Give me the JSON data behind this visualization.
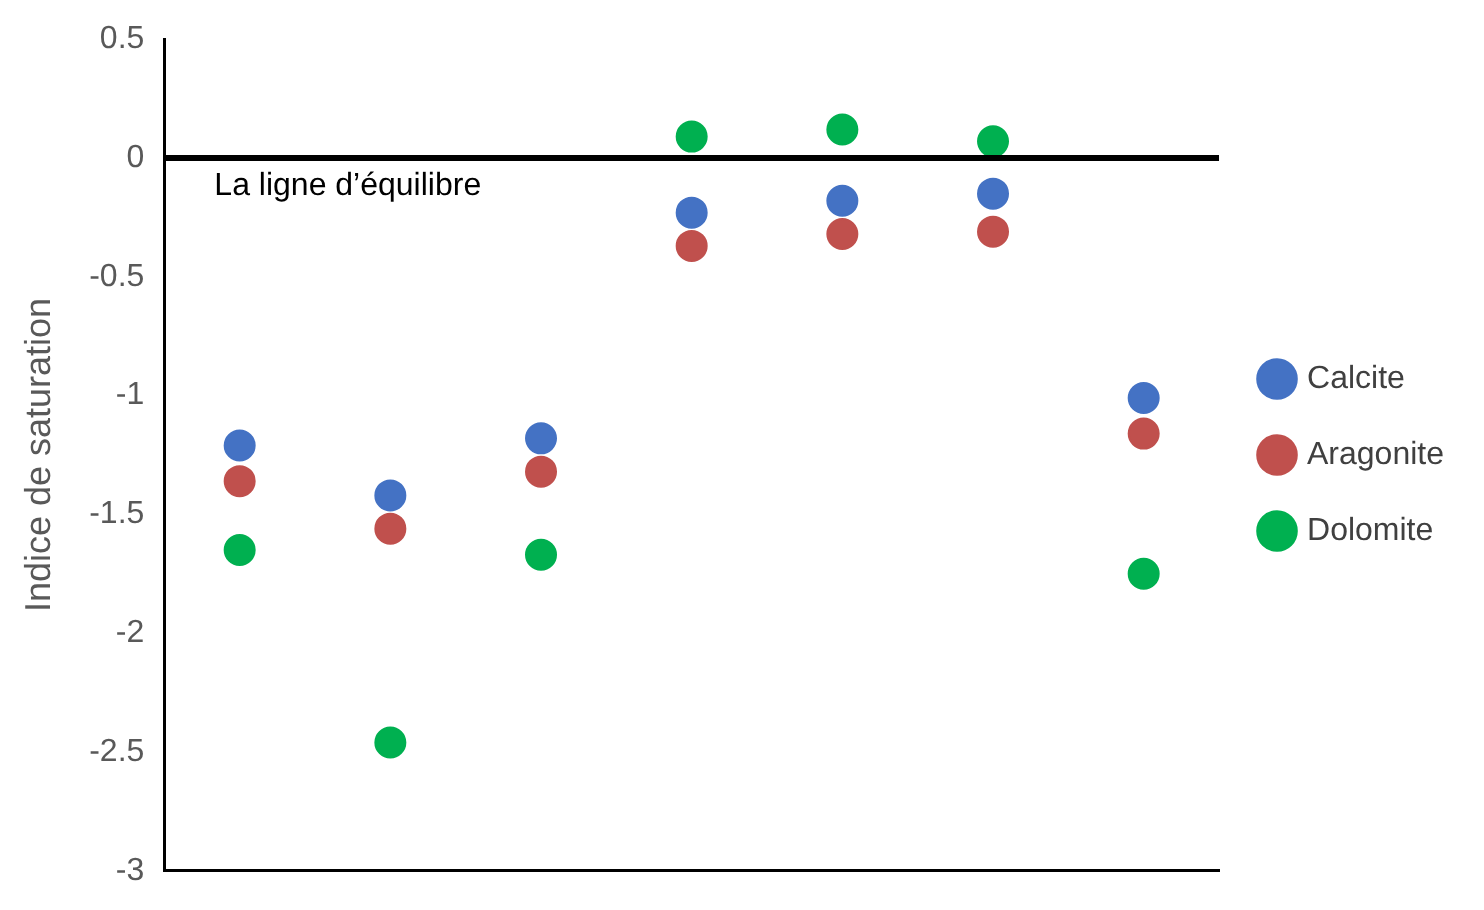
{
  "chart_data": {
    "type": "scatter",
    "ylabel": "Indice de saturation",
    "categories": [
      null,
      null,
      null,
      null,
      null,
      null,
      null
    ],
    "series": [
      {
        "name": "Calcite",
        "color": "#4472c4",
        "values": [
          -1.21,
          -1.42,
          -1.18,
          -0.23,
          -0.18,
          -0.15,
          -1.01
        ]
      },
      {
        "name": "Aragonite",
        "color": "#c0504d",
        "values": [
          -1.36,
          -1.56,
          -1.32,
          -0.37,
          -0.32,
          -0.31,
          -1.16
        ]
      },
      {
        "name": "Dolomite",
        "color": "#00b050",
        "values": [
          -1.65,
          -2.46,
          -1.67,
          0.09,
          0.12,
          0.07,
          -1.75
        ]
      }
    ],
    "ylim": [
      -3,
      0.5
    ],
    "yticks": [
      -3,
      -2.5,
      -2,
      -1.5,
      -1,
      -0.5,
      0,
      0.5
    ],
    "ref_lines": [
      {
        "axis": "y",
        "value": 0,
        "label": "La ligne d’équilibre",
        "color": "#000000"
      }
    ],
    "grid": false,
    "legend": "right",
    "marker": "circle",
    "tick_labels": "y"
  }
}
